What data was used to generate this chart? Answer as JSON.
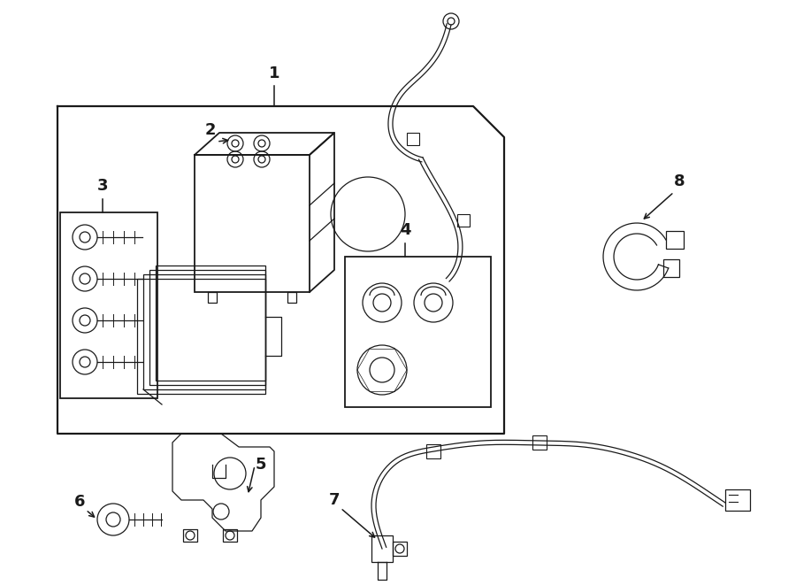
{
  "bg_color": "#ffffff",
  "line_color": "#1a1a1a",
  "figsize": [
    9.0,
    6.61
  ],
  "dpi": 100,
  "lw": 1.3,
  "lw_thin": 0.9,
  "lw_thick": 1.6
}
